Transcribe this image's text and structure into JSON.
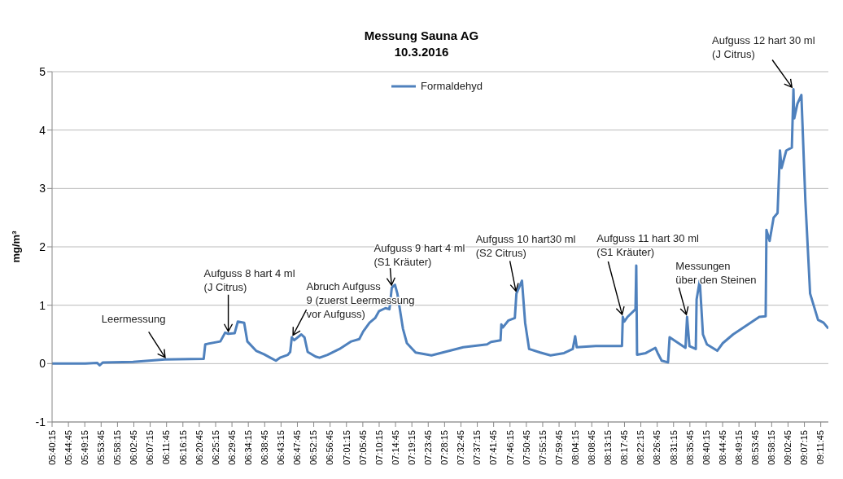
{
  "chart_data": {
    "type": "line",
    "title": "Messung Sauna AG\n10.3.2016",
    "ylabel": "mg/m³",
    "xlim": [
      5.6708,
      9.2307
    ],
    "ylim": [
      -1,
      5
    ],
    "yticks": [
      -1,
      0,
      1,
      2,
      3,
      4,
      5
    ],
    "xticks": [
      {
        "value": 5.6708,
        "label": "05:40:15"
      },
      {
        "value": 5.7458,
        "label": "05:44:45"
      },
      {
        "value": 5.8208,
        "label": "05:49:15"
      },
      {
        "value": 5.8958,
        "label": "05:53:45"
      },
      {
        "value": 5.9708,
        "label": "05:58:15"
      },
      {
        "value": 6.0458,
        "label": "06:02:45"
      },
      {
        "value": 6.1208,
        "label": "06:07:15"
      },
      {
        "value": 6.1958,
        "label": "06:11:45"
      },
      {
        "value": 6.2708,
        "label": "06:16:15"
      },
      {
        "value": 6.3458,
        "label": "06:20:45"
      },
      {
        "value": 6.4208,
        "label": "06:25:15"
      },
      {
        "value": 6.4958,
        "label": "06:29:45"
      },
      {
        "value": 6.5708,
        "label": "06:34:15"
      },
      {
        "value": 6.6458,
        "label": "06:38:45"
      },
      {
        "value": 6.7208,
        "label": "06:43:15"
      },
      {
        "value": 6.7958,
        "label": "06:47:45"
      },
      {
        "value": 6.8708,
        "label": "06:52:15"
      },
      {
        "value": 6.9458,
        "label": "06:56:45"
      },
      {
        "value": 7.0208,
        "label": "07:01:15"
      },
      {
        "value": 7.0958,
        "label": "07:05:45"
      },
      {
        "value": 7.1708,
        "label": "07:10:15"
      },
      {
        "value": 7.2458,
        "label": "07:14:45"
      },
      {
        "value": 7.3208,
        "label": "07:19:15"
      },
      {
        "value": 7.3958,
        "label": "07:23:45"
      },
      {
        "value": 7.4708,
        "label": "07:28:15"
      },
      {
        "value": 7.5458,
        "label": "07:32:45"
      },
      {
        "value": 7.6208,
        "label": "07:37:15"
      },
      {
        "value": 7.6958,
        "label": "07:41:45"
      },
      {
        "value": 7.7708,
        "label": "07:46:15"
      },
      {
        "value": 7.8458,
        "label": "07:50:45"
      },
      {
        "value": 7.9208,
        "label": "07:55:15"
      },
      {
        "value": 7.9958,
        "label": "07:59:45"
      },
      {
        "value": 8.0708,
        "label": "08:04:15"
      },
      {
        "value": 8.1458,
        "label": "08:08:45"
      },
      {
        "value": 8.2208,
        "label": "08:13:15"
      },
      {
        "value": 8.2958,
        "label": "08:17:45"
      },
      {
        "value": 8.3708,
        "label": "08:22:15"
      },
      {
        "value": 8.4458,
        "label": "08:26:45"
      },
      {
        "value": 8.5208,
        "label": "08:31:15"
      },
      {
        "value": 8.5958,
        "label": "08:35:45"
      },
      {
        "value": 8.6708,
        "label": "08:40:15"
      },
      {
        "value": 8.7458,
        "label": "08:44:45"
      },
      {
        "value": 8.8208,
        "label": "08:49:15"
      },
      {
        "value": 8.8958,
        "label": "08:53:45"
      },
      {
        "value": 8.9708,
        "label": "08:58:15"
      },
      {
        "value": 9.0458,
        "label": "09:02:45"
      },
      {
        "value": 9.1208,
        "label": "09:07:15"
      },
      {
        "value": 9.1958,
        "label": "09:11:45"
      }
    ],
    "grid": "y",
    "legend": "top",
    "marker": "none",
    "line_style": "solid",
    "series": [
      {
        "name": "Formaldehyd",
        "color": "#4f81bd",
        "x": [
          5.6708,
          5.8237,
          5.8783,
          5.8892,
          5.9038,
          6.0421,
          6.1877,
          6.366,
          6.3733,
          6.4425,
          6.4643,
          6.4789,
          6.508,
          6.5226,
          6.5517,
          6.5662,
          6.6063,
          6.6427,
          6.6718,
          6.6973,
          6.7155,
          6.7519,
          6.7628,
          6.7701,
          6.781,
          6.8138,
          6.8283,
          6.8429,
          6.8793,
          6.8975,
          6.9339,
          6.9885,
          7.0431,
          7.0795,
          7.0977,
          7.1268,
          7.1523,
          7.1705,
          7.1996,
          7.2178,
          7.2287,
          7.2433,
          7.2542,
          7.2797,
          7.2979,
          7.3379,
          7.4107,
          7.5563,
          7.6655,
          7.6837,
          7.7274,
          7.731,
          7.7383,
          7.7638,
          7.7929,
          7.8002,
          7.8257,
          7.8402,
          7.8584,
          7.9094,
          7.9567,
          8.0186,
          8.0586,
          8.0696,
          8.0768,
          8.1642,
          8.2843,
          8.288,
          8.2952,
          8.3098,
          8.3462,
          8.3498,
          8.3535,
          8.3935,
          8.4372,
          8.4481,
          8.4663,
          8.4954,
          8.5027,
          8.5755,
          8.5828,
          8.5937,
          8.6228,
          8.6265,
          8.641,
          8.6556,
          8.6738,
          8.7211,
          8.7466,
          8.7939,
          8.8667,
          8.914,
          8.9432,
          8.9468,
          8.9614,
          8.9796,
          8.9978,
          9.0087,
          9.016,
          9.0378,
          9.0633,
          9.0706,
          9.0742,
          9.0888,
          9.107,
          9.1252,
          9.147,
          9.1834,
          9.2089,
          9.2307
        ],
        "values": [
          0,
          0,
          0.01,
          -0.03,
          0.02,
          0.03,
          0.07,
          0.08,
          0.33,
          0.38,
          0.53,
          0.51,
          0.52,
          0.72,
          0.7,
          0.38,
          0.22,
          0.16,
          0.1,
          0.05,
          0.1,
          0.15,
          0.2,
          0.45,
          0.4,
          0.5,
          0.45,
          0.2,
          0.12,
          0.1,
          0.15,
          0.25,
          0.38,
          0.42,
          0.55,
          0.7,
          0.78,
          0.9,
          0.95,
          0.93,
          1.3,
          1.35,
          1.2,
          0.6,
          0.35,
          0.19,
          0.14,
          0.28,
          0.33,
          0.37,
          0.4,
          0.67,
          0.62,
          0.74,
          0.78,
          1.2,
          1.42,
          0.7,
          0.25,
          0.19,
          0.14,
          0.18,
          0.25,
          0.47,
          0.28,
          0.3,
          0.3,
          0.8,
          0.72,
          0.8,
          0.93,
          1.68,
          0.15,
          0.18,
          0.27,
          0.18,
          0.05,
          0.02,
          0.45,
          0.27,
          0.8,
          0.3,
          0.25,
          1.1,
          1.42,
          0.5,
          0.33,
          0.22,
          0.35,
          0.5,
          0.68,
          0.8,
          0.81,
          2.29,
          2.1,
          2.5,
          2.58,
          3.65,
          3.35,
          3.65,
          3.7,
          4.7,
          4.2,
          4.45,
          4.6,
          2.8,
          1.2,
          0.75,
          0.7,
          0.6
        ]
      }
    ],
    "annotations": [
      {
        "text": "Leermessung",
        "x": 6.1958,
        "y": 0.07
      },
      {
        "text": "Aufguss 8 hart 4 ml\n(J Citrus)",
        "x": 6.4789,
        "y": 0.51
      },
      {
        "text": "Abruch Aufguss\n9 (zuerst Leermessung\nvor Aufguss)",
        "x": 6.7701,
        "y": 0.45
      },
      {
        "text": "Aufguss 9 hart 4 ml\n(S1 Kräuter)",
        "x": 7.2287,
        "y": 1.3
      },
      {
        "text": "Aufguss 10 hart30 ml\n(S2 Citrus)",
        "x": 7.8002,
        "y": 1.2
      },
      {
        "text": "Aufguss 11 hart 30 ml\n(S1 Kräuter)",
        "x": 8.288,
        "y": 0.8
      },
      {
        "text": "Messungen\nüber den Steinen",
        "x": 8.5828,
        "y": 0.8
      },
      {
        "text": "Aufguss 12 hart 30 ml\n(J Citrus)",
        "x": 9.0706,
        "y": 4.7
      }
    ]
  }
}
